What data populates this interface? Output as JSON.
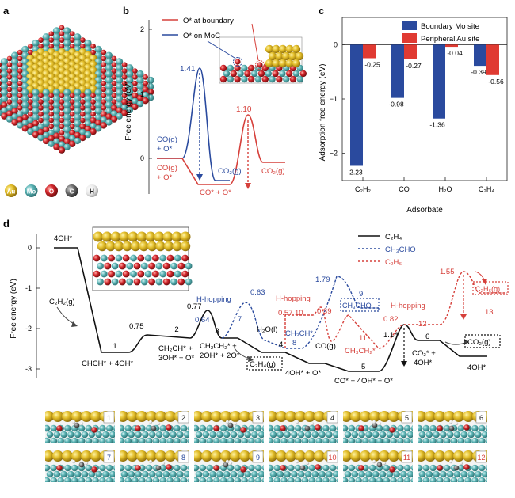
{
  "panels": {
    "a": "a",
    "b": "b",
    "c": "c",
    "d": "d"
  },
  "legend_atoms": [
    {
      "symbol": "Au",
      "color": "#d4b11f"
    },
    {
      "symbol": "Mo",
      "color": "#4aa7a8"
    },
    {
      "symbol": "O",
      "color": "#c8242b"
    },
    {
      "symbol": "C",
      "color": "#6a6a6a"
    },
    {
      "symbol": "H",
      "color": "#e8e8e8"
    }
  ],
  "colors": {
    "blue": "#2a4a9e",
    "red": "#d6403b",
    "black": "#111111"
  },
  "panel_b": {
    "ylabel": "Free energy (eV)",
    "ticks": [
      "2",
      "1",
      "0"
    ],
    "legend": [
      "O* at boundary",
      "O* on MoC"
    ],
    "peak_blue": "1.41",
    "peak_red": "1.10",
    "labels": {
      "co_g_o_blue_1": "CO(g)",
      "co_g_o_blue_2": "+ O*",
      "co_g_o_red_1": "CO(g)",
      "co_g_o_red_2": "+ O*",
      "co2_blue": "CO₂(g)",
      "co2_red": "CO₂(g)",
      "co_star": "CO* + O*"
    }
  },
  "chart_data": {
    "type": "bar",
    "title": "",
    "xlabel": "Adsorbate",
    "ylabel": "Adsorption free energy (eV)",
    "categories": [
      "C₂H₂",
      "CO",
      "H₂O",
      "C₂H₄"
    ],
    "series": [
      {
        "name": "Boundary Mo site",
        "color": "#2a4a9e",
        "values": [
          -2.23,
          -0.98,
          -1.36,
          -0.39
        ]
      },
      {
        "name": "Peripheral Au site",
        "color": "#e03a32",
        "values": [
          -0.25,
          -0.27,
          -0.04,
          -0.56
        ]
      }
    ],
    "value_labels": [
      [
        "-2.23",
        "-0.98",
        "-1.36",
        "-0.39"
      ],
      [
        "-0.25",
        "-0.27",
        "-0.04",
        "-0.56"
      ]
    ],
    "ylim": [
      -2.5,
      0.5
    ],
    "yticks": [
      0,
      -1,
      -2
    ],
    "ytick_labels": [
      "0",
      "−1",
      "−2"
    ]
  },
  "panel_d": {
    "ylabel": "Free energy (eV)",
    "ticks": [
      "0",
      "-1",
      "-2",
      "-3"
    ],
    "legend": [
      "C₂H₄",
      "CH₃CHO",
      "C₂H₆"
    ],
    "labels": {
      "s4oh": "4OH*",
      "c2h2g": "C₂H₂(g)",
      "n1": "1",
      "chch": "CHCH* + 4OH*",
      "v075": "0.75",
      "n2": "2",
      "ch2ch_1": "CH₂CH* +",
      "ch2ch_2": "3OH* + O*",
      "v077": "0.77",
      "n3": "3",
      "v064": "0.64",
      "ch2ch2_1": "CH₂CH₂* +",
      "ch2ch2_2": "2OH* + 2O*",
      "hhop1": "H-hopping",
      "n7": "7",
      "v063": "0.63",
      "c2h4g": "C₂H₄(g)",
      "h2ol": "H₂O(l)",
      "n4": "4",
      "s4oh_o": "4OH* + O*",
      "ch3ch": "CH₃CH*",
      "n8": "8",
      "hhop2": "H-hopping",
      "v057": "0.57",
      "n10": "10",
      "v039": "0.39",
      "v179": "1.79",
      "n9": "9",
      "ch3cho": "CH₃CHO",
      "cog": "CO(g)",
      "n11": "11",
      "ch3ch2": "CH₃CH₂*",
      "n5": "5",
      "co4oh": "CO* + 4OH* + O*",
      "v114": "1.14",
      "v082": "0.82",
      "hhop3": "H-hopping",
      "n12": "12",
      "n6": "6",
      "co2_1": "CO₂* +",
      "co2_2": "4OH*",
      "co2g": "CO₂(g)",
      "v155": "1.55",
      "c2h6g": "C₂H₆(g)",
      "n13": "13",
      "s4oh_end": "4OH*"
    }
  },
  "thumbnails": [
    "1",
    "2",
    "3",
    "4",
    "5",
    "6",
    "7",
    "8",
    "9",
    "10",
    "11",
    "12"
  ]
}
